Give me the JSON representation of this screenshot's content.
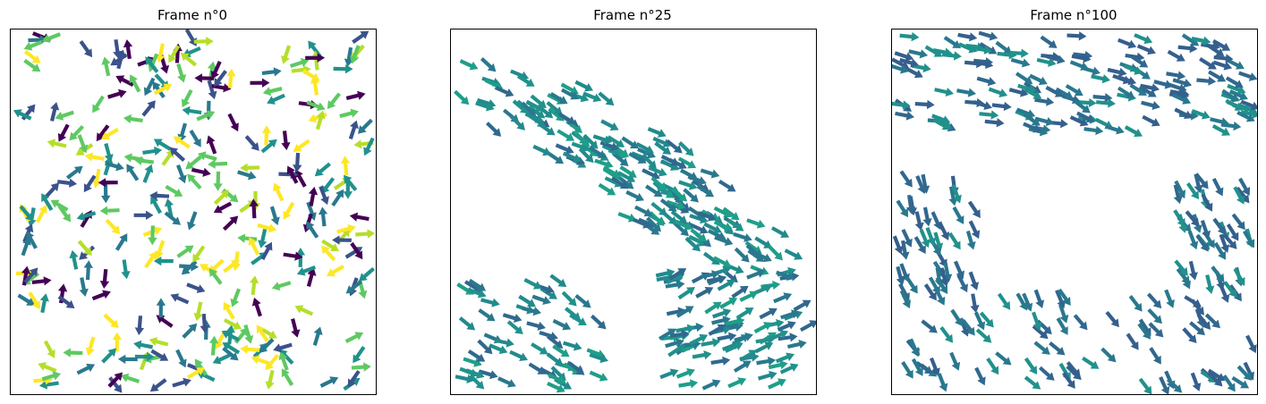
{
  "chart_data": [
    {
      "type": "quiver",
      "title": "Frame n°0",
      "pattern": "random",
      "seed": 11,
      "count": 300,
      "colors": [
        "#440154",
        "#3b528b",
        "#21918c",
        "#2a788e",
        "#5ec962",
        "#b5de2b",
        "#fde725"
      ]
    },
    {
      "type": "quiver",
      "title": "Frame n°25",
      "pattern": "band",
      "seed": 25,
      "count": 300,
      "colors": [
        "#2a788e",
        "#21918c",
        "#228a8d",
        "#31688e",
        "#1f9e89"
      ]
    },
    {
      "type": "quiver",
      "title": "Frame n°100",
      "pattern": "ring",
      "seed": 100,
      "count": 300,
      "colors": [
        "#2a788e",
        "#31688e",
        "#21918c",
        "#355f8d"
      ]
    }
  ]
}
